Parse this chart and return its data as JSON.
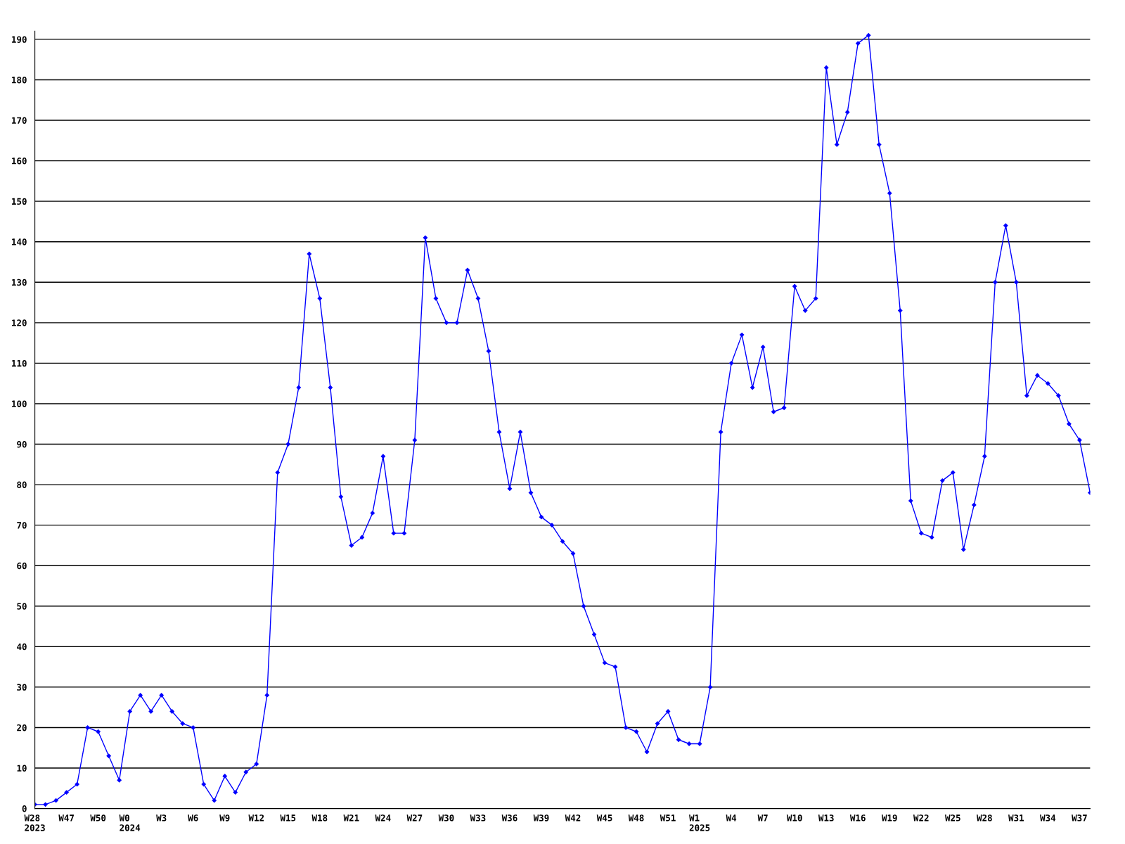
{
  "chart_data": {
    "type": "line",
    "categories": [
      "W28\n2023",
      null,
      null,
      "W47",
      null,
      null,
      "W50",
      null,
      null,
      "W0\n2024",
      null,
      null,
      "W3",
      null,
      null,
      "W6",
      null,
      null,
      "W9",
      null,
      null,
      "W12",
      null,
      null,
      "W15",
      null,
      null,
      "W18",
      null,
      null,
      "W21",
      null,
      null,
      "W24",
      null,
      null,
      "W27",
      null,
      null,
      "W30",
      null,
      null,
      "W33",
      null,
      null,
      "W36",
      null,
      null,
      "W39",
      null,
      null,
      "W42",
      null,
      null,
      "W45",
      null,
      null,
      "W48",
      null,
      null,
      "W51",
      null,
      null,
      "W1\n2025",
      null,
      null,
      "W4",
      null,
      null,
      "W7",
      null,
      null,
      "W10",
      null,
      null,
      "W13",
      null,
      null,
      "W16",
      null,
      null,
      "W19",
      null,
      null,
      "W22",
      null,
      null,
      "W25",
      null,
      null,
      "W28",
      null,
      null,
      "W31",
      null,
      null,
      "W34",
      null,
      null,
      "W37",
      null
    ],
    "series": [
      {
        "color": "#0000ff",
        "values": [
          1,
          1,
          2,
          4,
          6,
          20,
          19,
          13,
          7,
          24,
          28,
          24,
          28,
          24,
          21,
          20,
          6,
          2,
          8,
          4,
          9,
          11,
          28,
          83,
          90,
          104,
          137,
          126,
          104,
          77,
          65,
          67,
          73,
          87,
          68,
          68,
          91,
          141,
          126,
          120,
          120,
          133,
          126,
          113,
          93,
          79,
          93,
          78,
          72,
          70,
          66,
          63,
          50,
          43,
          36,
          35,
          20,
          19,
          14,
          21,
          24,
          17,
          16,
          16,
          30,
          93,
          110,
          117,
          104,
          114,
          98,
          99,
          129,
          123,
          126,
          183,
          164,
          172,
          189,
          191,
          164,
          152,
          123,
          76,
          68,
          67,
          81,
          83,
          64,
          75,
          87,
          130,
          144,
          130,
          102,
          107,
          105,
          102,
          95,
          91,
          78
        ]
      }
    ],
    "ylim": [
      0,
      192
    ],
    "yticks": [
      0,
      10,
      20,
      30,
      40,
      50,
      60,
      70,
      80,
      90,
      100,
      110,
      120,
      130,
      140,
      150,
      160,
      170,
      180,
      190
    ],
    "grid": "y",
    "marker": "diamond",
    "line_style": "solid",
    "legend": false
  }
}
